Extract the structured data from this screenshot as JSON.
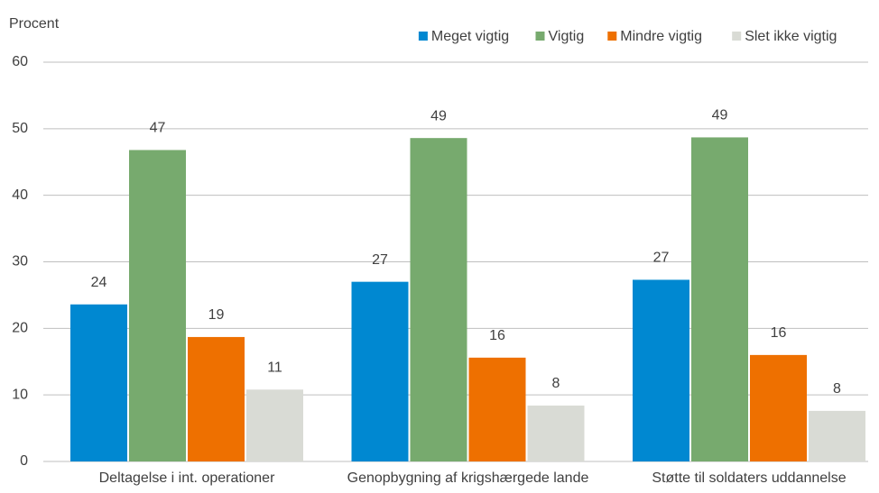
{
  "chart_data": {
    "type": "bar",
    "y_label": "Procent",
    "categories": [
      "Deltagelse i int. operationer",
      "Genopbygning af krigshærgede lande",
      "Støtte til soldaters uddannelse"
    ],
    "series": [
      {
        "name": "Meget vigtig",
        "color": "#0088d1",
        "values": [
          23.6,
          27.0,
          27.3
        ],
        "value_labels": [
          "24",
          "27",
          "27"
        ]
      },
      {
        "name": "Vigtig",
        "color": "#77aa6e",
        "values": [
          46.8,
          48.6,
          48.7
        ],
        "value_labels": [
          "47",
          "49",
          "49"
        ]
      },
      {
        "name": "Mindre vigtig",
        "color": "#ee7000",
        "values": [
          18.7,
          15.6,
          16.0
        ],
        "value_labels": [
          "19",
          "16",
          "16"
        ]
      },
      {
        "name": "Slet ikke vigtig",
        "color": "#d9dbd5",
        "values": [
          10.8,
          8.4,
          7.6
        ],
        "value_labels": [
          "11",
          "8",
          "8"
        ]
      }
    ],
    "ylim": [
      0,
      60
    ],
    "yticks": [
      0,
      10,
      20,
      30,
      40,
      50,
      60
    ],
    "grid": true,
    "legend": "top-right"
  }
}
